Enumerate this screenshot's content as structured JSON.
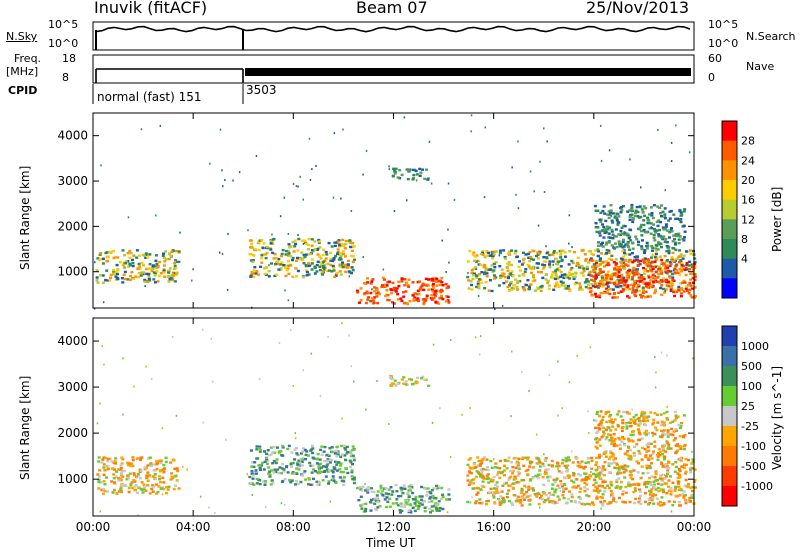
{
  "header": {
    "station": "Inuvik (fitACF)",
    "beam": "Beam 07",
    "date": "25/Nov/2013"
  },
  "summary": {
    "nsky_label": "N.Sky",
    "nsearch_label": "N.Search",
    "freq_label": "Freq.",
    "freq_unit": "[MHz]",
    "nave_label": "Nave",
    "cpid_label": "CPID",
    "noise_ticks": [
      "10^5",
      "10^0"
    ],
    "freq_ticks": [
      "18",
      "8"
    ],
    "nave_ticks": [
      "60",
      "0"
    ],
    "cpid_segments": [
      {
        "label": "normal (fast) 151",
        "start_hour": 0,
        "end_hour": 6.1
      },
      {
        "label": "3503",
        "start_hour": 6.1,
        "end_hour": 24
      }
    ]
  },
  "chart_data": [
    {
      "type": "heatmap",
      "panel": "power",
      "ylabel": "Slant Range [km]",
      "xlabel": "Time UT",
      "xlim": [
        0,
        24
      ],
      "ylim": [
        200,
        4500
      ],
      "x_ticks": [
        "00:00",
        "04:00",
        "08:00",
        "12:00",
        "16:00",
        "20:00",
        "00:00"
      ],
      "y_ticks": [
        1000,
        2000,
        3000,
        4000
      ],
      "colorbar_label": "Power [dB]",
      "colorbar_ticks": [
        "28",
        "24",
        "20",
        "16",
        "12",
        "8",
        "4"
      ],
      "colorbar_colors": [
        "#ff0000",
        "#ff5a00",
        "#ff9000",
        "#ffcc00",
        "#b8cc30",
        "#5a9e5a",
        "#2e8b57",
        "#1e5aa8",
        "#0000ff"
      ],
      "echo_regions": [
        {
          "t0": 0.1,
          "t1": 3.4,
          "r0": 780,
          "r1": 1500,
          "level": "mid"
        },
        {
          "t0": 6.2,
          "t1": 10.4,
          "r0": 900,
          "r1": 1750,
          "level": "mid"
        },
        {
          "t0": 10.5,
          "t1": 14.2,
          "r0": 300,
          "r1": 900,
          "level": "high"
        },
        {
          "t0": 11.8,
          "t1": 13.4,
          "r0": 3050,
          "r1": 3300,
          "level": "low"
        },
        {
          "t0": 14.9,
          "t1": 24,
          "r0": 600,
          "r1": 1500,
          "level": "mid"
        },
        {
          "t0": 19.8,
          "t1": 24,
          "r0": 450,
          "r1": 1300,
          "level": "high"
        },
        {
          "t0": 20,
          "t1": 23.6,
          "r0": 1500,
          "r1": 2500,
          "level": "low"
        }
      ]
    },
    {
      "type": "heatmap",
      "panel": "velocity",
      "ylabel": "Slant Range [km]",
      "xlabel": "Time UT",
      "xlim": [
        0,
        24
      ],
      "ylim": [
        200,
        4500
      ],
      "x_ticks": [
        "00:00",
        "04:00",
        "08:00",
        "12:00",
        "16:00",
        "20:00",
        "00:00"
      ],
      "y_ticks": [
        1000,
        2000,
        3000,
        4000
      ],
      "colorbar_label": "Velocity [m s^-1]",
      "colorbar_ticks": [
        "1000",
        "500",
        "100",
        "25",
        "-25",
        "-100",
        "-500",
        "-1000"
      ],
      "colorbar_colors": [
        "#2040b0",
        "#3a70a8",
        "#3d8f5a",
        "#66cc33",
        "#c8c8c8",
        "#ffa500",
        "#ff7a00",
        "#ff3b00",
        "#ff0000"
      ],
      "echo_regions": [
        {
          "t0": 0.1,
          "t1": 3.4,
          "r0": 700,
          "r1": 1500,
          "level": "neg"
        },
        {
          "t0": 6.2,
          "t1": 10.4,
          "r0": 900,
          "r1": 1750,
          "level": "pos"
        },
        {
          "t0": 10.5,
          "t1": 14.2,
          "r0": 300,
          "r1": 900,
          "level": "pos"
        },
        {
          "t0": 11.8,
          "t1": 13.4,
          "r0": 3050,
          "r1": 3300,
          "level": "mix"
        },
        {
          "t0": 14.9,
          "t1": 24,
          "r0": 450,
          "r1": 1500,
          "level": "neg"
        },
        {
          "t0": 20,
          "t1": 23.6,
          "r0": 1500,
          "r1": 2500,
          "level": "neg"
        }
      ]
    }
  ]
}
